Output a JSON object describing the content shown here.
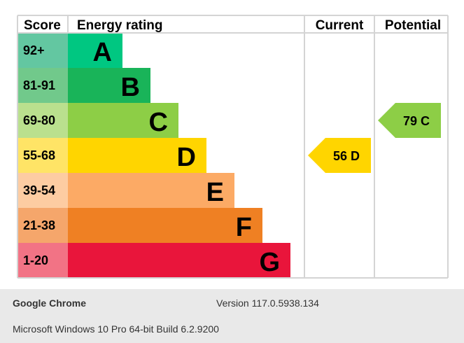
{
  "chart_data": {
    "type": "bar",
    "headers": {
      "score": "Score",
      "rating": "Energy rating",
      "current": "Current",
      "potential": "Potential"
    },
    "bands": [
      {
        "letter": "A",
        "range": "92+",
        "color": "#00c781",
        "light": "#63c7a1"
      },
      {
        "letter": "B",
        "range": "81-91",
        "color": "#19b459",
        "light": "#71c98b"
      },
      {
        "letter": "C",
        "range": "69-80",
        "color": "#8dce46",
        "light": "#bae08e"
      },
      {
        "letter": "D",
        "range": "55-68",
        "color": "#ffd500",
        "light": "#ffe466"
      },
      {
        "letter": "E",
        "range": "39-54",
        "color": "#fcaa65",
        "light": "#fdcca2"
      },
      {
        "letter": "F",
        "range": "21-38",
        "color": "#ef8023",
        "light": "#f5a66b"
      },
      {
        "letter": "G",
        "range": "1-20",
        "color": "#e9153b",
        "light": "#f27385"
      }
    ],
    "current": {
      "value": 56,
      "letter": "D",
      "label": "56  D"
    },
    "potential": {
      "value": 79,
      "letter": "C",
      "label": "79  C"
    }
  },
  "footer": {
    "browser": "Google Chrome",
    "version": "Version 117.0.5938.134",
    "os": "Microsoft Windows 10 Pro 64-bit Build 6.2.9200"
  }
}
